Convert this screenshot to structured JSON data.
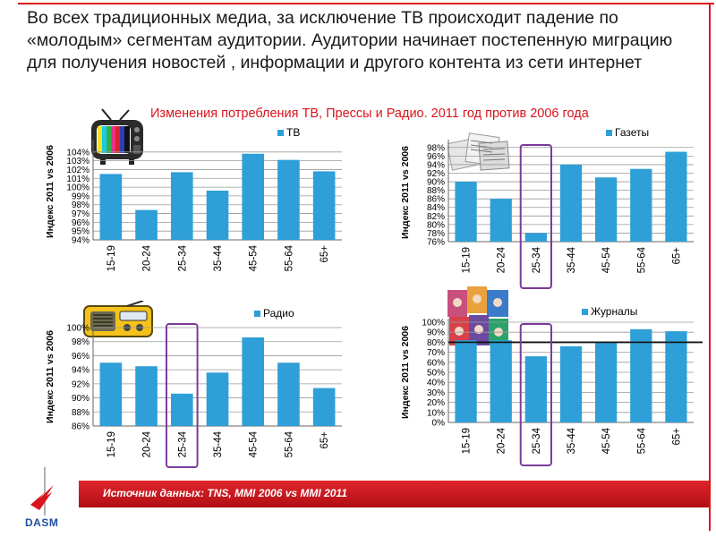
{
  "headline": "Во всех традиционных медиа, за исключение ТВ происходит падение по «молодым» сегментам аудитории. Аудитории начинает постепенную миграцию для получения новостей , информации и другого контента из сети интернет",
  "subtitle": "Изменения потребления ТВ, Прессы и Радио. 2011 год против 2006 года",
  "footer": {
    "source_text": "Источник данных: TNS,  MMI 2006 vs MMI 2011"
  },
  "logo": {
    "text": "DASM"
  },
  "colors": {
    "bar": "#2e9fd7",
    "highlight": "#7b3b9a",
    "accent_red": "#d9141b"
  },
  "chart_data": [
    {
      "type": "bar",
      "series": [
        {
          "name": "ТВ",
          "values": [
            101.5,
            97.4,
            101.7,
            99.6,
            103.8,
            103.1,
            101.8
          ]
        }
      ],
      "categories": [
        "15-19",
        "20-24",
        "25-34",
        "35-44",
        "45-54",
        "55-64",
        "65+"
      ],
      "ylabel": "Индекс 2011 vs 2006",
      "ylim": [
        94,
        105
      ],
      "ticks": [
        "94%",
        "95%",
        "96%",
        "97%",
        "98%",
        "99%",
        "100%",
        "101%",
        "102%",
        "103%",
        "104%"
      ],
      "tick_values": [
        94,
        95,
        96,
        97,
        98,
        99,
        100,
        101,
        102,
        103,
        104
      ],
      "highlight_category": null,
      "grid": true,
      "legend": "top"
    },
    {
      "type": "bar",
      "series": [
        {
          "name": "Газеты",
          "values": [
            90,
            86,
            78,
            94,
            91,
            93,
            97
          ]
        }
      ],
      "categories": [
        "15-19",
        "20-24",
        "25-34",
        "35-44",
        "45-54",
        "55-64",
        "65+"
      ],
      "ylabel": "Индекс 2011 vs 2006",
      "ylim": [
        76,
        99
      ],
      "ticks": [
        "76%",
        "78%",
        "80%",
        "82%",
        "84%",
        "86%",
        "88%",
        "90%",
        "92%",
        "94%",
        "96%",
        "98%"
      ],
      "tick_values": [
        76,
        78,
        80,
        82,
        84,
        86,
        88,
        90,
        92,
        94,
        96,
        98
      ],
      "highlight_category": "25-34",
      "grid": true,
      "legend": "top"
    },
    {
      "type": "bar",
      "series": [
        {
          "name": "Радио",
          "values": [
            95,
            94.5,
            90.6,
            93.6,
            98.6,
            95,
            91.4
          ]
        }
      ],
      "categories": [
        "15-19",
        "20-24",
        "25-34",
        "35-44",
        "45-54",
        "55-64",
        "65+"
      ],
      "ylabel": "Индекс 2011 vs 2006",
      "ylim": [
        86,
        100
      ],
      "ticks": [
        "86%",
        "88%",
        "90%",
        "92%",
        "94%",
        "96%",
        "98%",
        "100%"
      ],
      "tick_values": [
        86,
        88,
        90,
        92,
        94,
        96,
        98,
        100
      ],
      "highlight_category": "25-34",
      "grid": true,
      "legend": "top"
    },
    {
      "type": "bar",
      "series": [
        {
          "name": "Журналы",
          "values": [
            82,
            82,
            66,
            76,
            80,
            93,
            91
          ]
        }
      ],
      "categories": [
        "15-19",
        "20-24",
        "25-34",
        "35-44",
        "45-54",
        "55-64",
        "65+"
      ],
      "ylabel": "Индекс 2011 vs 2006",
      "ylim": [
        0,
        100
      ],
      "ticks": [
        "0%",
        "10%",
        "20%",
        "30%",
        "40%",
        "50%",
        "60%",
        "70%",
        "80%",
        "90%",
        "100%"
      ],
      "tick_values": [
        0,
        10,
        20,
        30,
        40,
        50,
        60,
        70,
        80,
        90,
        100
      ],
      "reference_line": 80,
      "highlight_category": "25-34",
      "grid": true,
      "legend": "top"
    }
  ]
}
